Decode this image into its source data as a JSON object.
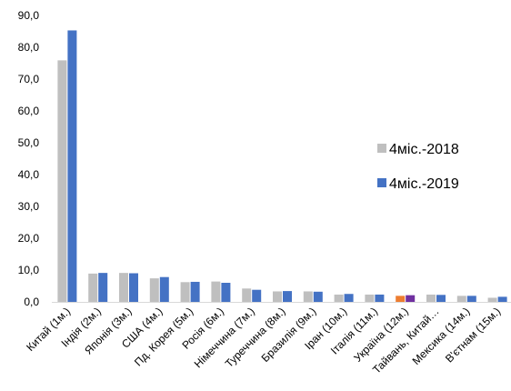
{
  "chart_data": {
    "type": "bar",
    "title": "",
    "xlabel": "",
    "ylabel": "",
    "ylim": [
      0,
      90
    ],
    "yticks": [
      "0,0",
      "10,0",
      "20,0",
      "30,0",
      "40,0",
      "50,0",
      "60,0",
      "70,0",
      "80,0",
      "90,0"
    ],
    "grid": false,
    "legend_position": "right",
    "categories": [
      "Китай (1м.)",
      "Індія (2м.)",
      "Японія (3м.)",
      "США (4м.)",
      "Пд. Корея (5м.)",
      "Росія (6м.)",
      "Німеччина (7м.)",
      "Туреччина (8м.)",
      "Бразилія (9м.)",
      "Іран (10м.)",
      "Італія (11м.)",
      "Україна (12м.)",
      "Тайвань, Китай…",
      "Мексика (14м.)",
      "В'єтнам (15м.)"
    ],
    "series": [
      {
        "name": "4міс.-2018",
        "color": "#bfbfbf",
        "values": [
          75.9,
          8.9,
          9.1,
          7.4,
          6.2,
          6.4,
          4.2,
          3.3,
          3.3,
          2.3,
          2.3,
          1.9,
          2.3,
          1.9,
          1.3
        ]
      },
      {
        "name": "4міс.-2019",
        "color": "#4472c4",
        "values": [
          85.3,
          9.1,
          9.0,
          7.8,
          6.3,
          6.0,
          3.8,
          3.4,
          3.2,
          2.5,
          2.3,
          2.1,
          2.2,
          1.9,
          1.6
        ]
      }
    ],
    "highlight": {
      "category": "Україна (12м.)",
      "colors": [
        "#ed7d31",
        "#7030a0"
      ]
    },
    "axis_color": "#d9d9d9"
  }
}
